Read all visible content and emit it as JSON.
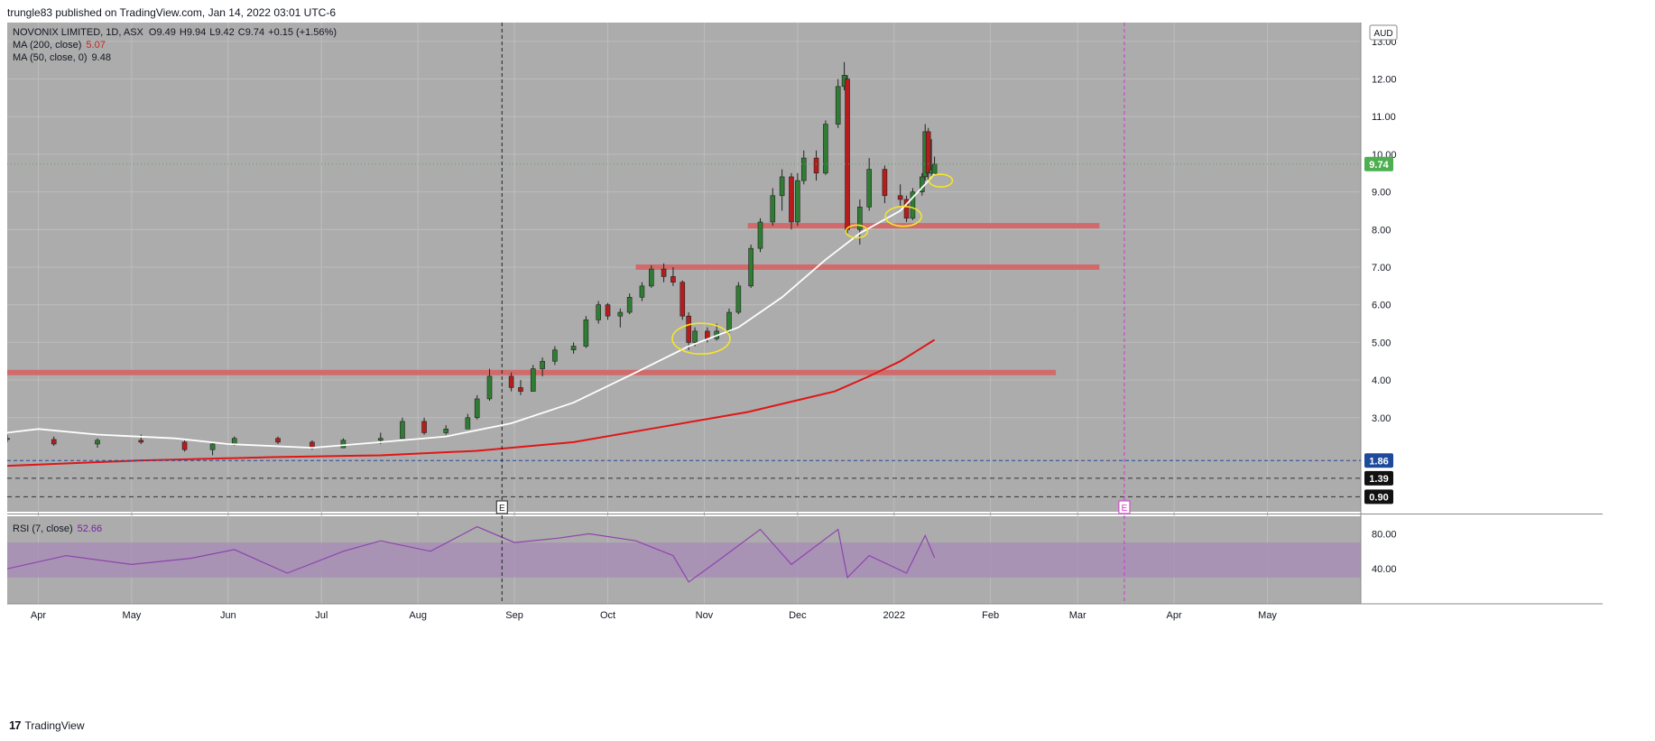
{
  "header": {
    "text": "trungle83 published on TradingView.com, Jan 14, 2022 03:01 UTC-6"
  },
  "legend": {
    "symbol": "NOVONIX LIMITED, 1D, ASX",
    "o_label": "O",
    "o_val": "9.49",
    "h_label": "H",
    "h_val": "9.94",
    "l_label": "L",
    "l_val": "9.42",
    "c_label": "C",
    "c_val": "9.74",
    "change": "+0.15 (+1.56%)",
    "ma200_label": "MA (200, close)",
    "ma200_val": "5.07",
    "ma50_label": "MA (50, close, 0)",
    "ma50_val": "9.48",
    "rsi_label": "RSI (7, close)",
    "rsi_val": "52.66"
  },
  "currency": "AUD",
  "footer": {
    "brand": "TradingView"
  },
  "colors": {
    "pane_bg": "#acacac",
    "up": "#2e7d32",
    "down": "#b71c1c",
    "ma200": "#e01616",
    "ma50": "#ffffff",
    "support": "#d16a6a",
    "rsi": "#8e44ad",
    "rsi_band": "#a78bb8",
    "highlight": "#f5e52a",
    "earnings": "#d633d6",
    "price_tag": "#4caf50"
  },
  "chart_data": {
    "type": "candlestick",
    "title": "NOVONIX LIMITED, 1D, ASX",
    "x_ticks": [
      "Apr",
      "May",
      "Jun",
      "Jul",
      "Aug",
      "Sep",
      "Oct",
      "Nov",
      "Dec",
      "2022",
      "Feb",
      "Mar",
      "Apr",
      "May"
    ],
    "y_ticks": [
      "13.00",
      "12.00",
      "11.00",
      "10.00",
      "9.00",
      "8.00",
      "7.00",
      "6.00",
      "5.00",
      "4.00",
      "3.00"
    ],
    "ylim": [
      0.5,
      13.5
    ],
    "price_labels": [
      {
        "value": 9.74,
        "label": "9.74",
        "kind": "last"
      },
      {
        "value": 1.86,
        "label": "1.86",
        "kind": "blue"
      },
      {
        "value": 1.39,
        "label": "1.39",
        "kind": "black"
      },
      {
        "value": 0.9,
        "label": "0.90",
        "kind": "black"
      }
    ],
    "date_range": [
      "2021-03-22",
      "2022-05-31"
    ],
    "ohlc_points": [
      {
        "date": "2021-03-22",
        "o": 2.45,
        "h": 2.55,
        "l": 2.35,
        "c": 2.42
      },
      {
        "date": "2021-04-06",
        "o": 2.42,
        "h": 2.5,
        "l": 2.25,
        "c": 2.3
      },
      {
        "date": "2021-04-20",
        "o": 2.3,
        "h": 2.45,
        "l": 2.2,
        "c": 2.4
      },
      {
        "date": "2021-05-04",
        "o": 2.4,
        "h": 2.55,
        "l": 2.3,
        "c": 2.35
      },
      {
        "date": "2021-05-18",
        "o": 2.35,
        "h": 2.4,
        "l": 2.1,
        "c": 2.15
      },
      {
        "date": "2021-05-27",
        "o": 2.15,
        "h": 2.35,
        "l": 2.0,
        "c": 2.3
      },
      {
        "date": "2021-06-03",
        "o": 2.3,
        "h": 2.5,
        "l": 2.25,
        "c": 2.45
      },
      {
        "date": "2021-06-17",
        "o": 2.45,
        "h": 2.5,
        "l": 2.3,
        "c": 2.35
      },
      {
        "date": "2021-06-28",
        "o": 2.35,
        "h": 2.4,
        "l": 2.15,
        "c": 2.2
      },
      {
        "date": "2021-07-08",
        "o": 2.2,
        "h": 2.45,
        "l": 2.2,
        "c": 2.4
      },
      {
        "date": "2021-07-20",
        "o": 2.4,
        "h": 2.6,
        "l": 2.3,
        "c": 2.45
      },
      {
        "date": "2021-07-27",
        "o": 2.45,
        "h": 3.0,
        "l": 2.45,
        "c": 2.9
      },
      {
        "date": "2021-08-03",
        "o": 2.9,
        "h": 3.0,
        "l": 2.55,
        "c": 2.6
      },
      {
        "date": "2021-08-10",
        "o": 2.6,
        "h": 2.8,
        "l": 2.55,
        "c": 2.7
      },
      {
        "date": "2021-08-17",
        "o": 2.7,
        "h": 3.1,
        "l": 2.7,
        "c": 3.0
      },
      {
        "date": "2021-08-20",
        "o": 3.0,
        "h": 3.6,
        "l": 2.95,
        "c": 3.5
      },
      {
        "date": "2021-08-24",
        "o": 3.5,
        "h": 4.3,
        "l": 3.45,
        "c": 4.1
      },
      {
        "date": "2021-08-31",
        "o": 4.1,
        "h": 4.2,
        "l": 3.7,
        "c": 3.8
      },
      {
        "date": "2021-09-03",
        "o": 3.8,
        "h": 4.0,
        "l": 3.6,
        "c": 3.7
      },
      {
        "date": "2021-09-07",
        "o": 3.7,
        "h": 4.4,
        "l": 3.7,
        "c": 4.3
      },
      {
        "date": "2021-09-10",
        "o": 4.3,
        "h": 4.6,
        "l": 4.1,
        "c": 4.5
      },
      {
        "date": "2021-09-14",
        "o": 4.5,
        "h": 4.9,
        "l": 4.4,
        "c": 4.8
      },
      {
        "date": "2021-09-20",
        "o": 4.8,
        "h": 5.0,
        "l": 4.7,
        "c": 4.9
      },
      {
        "date": "2021-09-24",
        "o": 4.9,
        "h": 5.7,
        "l": 4.85,
        "c": 5.6
      },
      {
        "date": "2021-09-28",
        "o": 5.6,
        "h": 6.1,
        "l": 5.5,
        "c": 6.0
      },
      {
        "date": "2021-10-01",
        "o": 6.0,
        "h": 6.05,
        "l": 5.6,
        "c": 5.7
      },
      {
        "date": "2021-10-05",
        "o": 5.7,
        "h": 5.9,
        "l": 5.4,
        "c": 5.8
      },
      {
        "date": "2021-10-08",
        "o": 5.8,
        "h": 6.3,
        "l": 5.75,
        "c": 6.2
      },
      {
        "date": "2021-10-12",
        "o": 6.2,
        "h": 6.6,
        "l": 6.1,
        "c": 6.5
      },
      {
        "date": "2021-10-15",
        "o": 6.5,
        "h": 7.05,
        "l": 6.45,
        "c": 6.95
      },
      {
        "date": "2021-10-19",
        "o": 6.95,
        "h": 7.1,
        "l": 6.6,
        "c": 6.75
      },
      {
        "date": "2021-10-22",
        "o": 6.75,
        "h": 7.0,
        "l": 6.5,
        "c": 6.6
      },
      {
        "date": "2021-10-25",
        "o": 6.6,
        "h": 6.65,
        "l": 5.6,
        "c": 5.7
      },
      {
        "date": "2021-10-27",
        "o": 5.7,
        "h": 5.8,
        "l": 4.8,
        "c": 5.0
      },
      {
        "date": "2021-10-29",
        "o": 5.0,
        "h": 5.4,
        "l": 4.9,
        "c": 5.3
      },
      {
        "date": "2021-11-02",
        "o": 5.3,
        "h": 5.4,
        "l": 5.0,
        "c": 5.1
      },
      {
        "date": "2021-11-05",
        "o": 5.1,
        "h": 5.5,
        "l": 5.05,
        "c": 5.3
      },
      {
        "date": "2021-11-09",
        "o": 5.3,
        "h": 5.9,
        "l": 5.25,
        "c": 5.8
      },
      {
        "date": "2021-11-12",
        "o": 5.8,
        "h": 6.6,
        "l": 5.75,
        "c": 6.5
      },
      {
        "date": "2021-11-16",
        "o": 6.5,
        "h": 7.6,
        "l": 6.45,
        "c": 7.5
      },
      {
        "date": "2021-11-19",
        "o": 7.5,
        "h": 8.3,
        "l": 7.4,
        "c": 8.2
      },
      {
        "date": "2021-11-23",
        "o": 8.2,
        "h": 9.1,
        "l": 8.1,
        "c": 8.9
      },
      {
        "date": "2021-11-26",
        "o": 8.9,
        "h": 9.6,
        "l": 8.5,
        "c": 9.4
      },
      {
        "date": "2021-11-29",
        "o": 9.4,
        "h": 9.5,
        "l": 8.0,
        "c": 8.2
      },
      {
        "date": "2021-12-01",
        "o": 8.2,
        "h": 9.5,
        "l": 8.1,
        "c": 9.3
      },
      {
        "date": "2021-12-03",
        "o": 9.3,
        "h": 10.1,
        "l": 9.2,
        "c": 9.9
      },
      {
        "date": "2021-12-07",
        "o": 9.9,
        "h": 10.1,
        "l": 9.3,
        "c": 9.5
      },
      {
        "date": "2021-12-10",
        "o": 9.5,
        "h": 10.9,
        "l": 9.45,
        "c": 10.8
      },
      {
        "date": "2021-12-14",
        "o": 10.8,
        "h": 12.0,
        "l": 10.7,
        "c": 11.8
      },
      {
        "date": "2021-12-16",
        "o": 11.8,
        "h": 12.45,
        "l": 11.7,
        "c": 12.1
      },
      {
        "date": "2021-12-17",
        "o": 12.0,
        "h": 12.1,
        "l": 7.9,
        "c": 8.0
      },
      {
        "date": "2021-12-21",
        "o": 8.0,
        "h": 8.8,
        "l": 7.6,
        "c": 8.6
      },
      {
        "date": "2021-12-24",
        "o": 8.6,
        "h": 9.9,
        "l": 8.5,
        "c": 9.6
      },
      {
        "date": "2021-12-29",
        "o": 9.6,
        "h": 9.7,
        "l": 8.7,
        "c": 8.9
      },
      {
        "date": "2022-01-03",
        "o": 8.9,
        "h": 9.2,
        "l": 8.6,
        "c": 8.8
      },
      {
        "date": "2022-01-05",
        "o": 8.8,
        "h": 8.9,
        "l": 8.2,
        "c": 8.3
      },
      {
        "date": "2022-01-07",
        "o": 8.3,
        "h": 9.1,
        "l": 8.25,
        "c": 9.0
      },
      {
        "date": "2022-01-10",
        "o": 9.0,
        "h": 9.5,
        "l": 8.9,
        "c": 9.4
      },
      {
        "date": "2022-01-11",
        "o": 9.4,
        "h": 10.8,
        "l": 9.3,
        "c": 10.6
      },
      {
        "date": "2022-01-12",
        "o": 10.6,
        "h": 10.7,
        "l": 9.3,
        "c": 9.5
      },
      {
        "date": "2022-01-13",
        "o": 9.5,
        "h": 10.4,
        "l": 9.4,
        "c": 9.59
      },
      {
        "date": "2022-01-14",
        "o": 9.49,
        "h": 9.94,
        "l": 9.42,
        "c": 9.74
      }
    ],
    "ma200": [
      {
        "date": "2021-03-22",
        "v": 1.72
      },
      {
        "date": "2021-05-03",
        "v": 1.86
      },
      {
        "date": "2021-06-15",
        "v": 1.95
      },
      {
        "date": "2021-07-20",
        "v": 2.0
      },
      {
        "date": "2021-08-20",
        "v": 2.12
      },
      {
        "date": "2021-09-20",
        "v": 2.35
      },
      {
        "date": "2021-10-18",
        "v": 2.75
      },
      {
        "date": "2021-11-15",
        "v": 3.15
      },
      {
        "date": "2021-12-13",
        "v": 3.7
      },
      {
        "date": "2021-12-24",
        "v": 4.1
      },
      {
        "date": "2022-01-03",
        "v": 4.5
      },
      {
        "date": "2022-01-14",
        "v": 5.07
      }
    ],
    "ma50": [
      {
        "date": "2021-03-22",
        "v": 2.6
      },
      {
        "date": "2021-04-01",
        "v": 2.7
      },
      {
        "date": "2021-04-20",
        "v": 2.55
      },
      {
        "date": "2021-05-15",
        "v": 2.45
      },
      {
        "date": "2021-06-01",
        "v": 2.3
      },
      {
        "date": "2021-06-28",
        "v": 2.2
      },
      {
        "date": "2021-07-20",
        "v": 2.35
      },
      {
        "date": "2021-08-10",
        "v": 2.5
      },
      {
        "date": "2021-08-31",
        "v": 2.85
      },
      {
        "date": "2021-09-20",
        "v": 3.4
      },
      {
        "date": "2021-10-10",
        "v": 4.2
      },
      {
        "date": "2021-10-27",
        "v": 4.9
      },
      {
        "date": "2021-11-12",
        "v": 5.4
      },
      {
        "date": "2021-11-26",
        "v": 6.2
      },
      {
        "date": "2021-12-10",
        "v": 7.2
      },
      {
        "date": "2021-12-21",
        "v": 7.9
      },
      {
        "date": "2022-01-03",
        "v": 8.5
      },
      {
        "date": "2022-01-11",
        "v": 9.2
      },
      {
        "date": "2022-01-14",
        "v": 9.48
      }
    ],
    "support_lines": [
      {
        "value": 4.2,
        "start": "2021-03-22",
        "end": "2022-02-22"
      },
      {
        "value": 7.0,
        "start": "2021-10-10",
        "end": "2022-03-08"
      },
      {
        "value": 8.1,
        "start": "2021-11-15",
        "end": "2022-03-08"
      }
    ],
    "earnings": [
      {
        "date": "2021-08-28",
        "label": "E"
      },
      {
        "date": "2022-03-16",
        "label": "E"
      }
    ],
    "highlights": [
      {
        "date": "2021-10-31",
        "value": 5.1
      },
      {
        "date": "2021-12-20",
        "value": 7.95
      },
      {
        "date": "2022-01-04",
        "value": 8.35
      },
      {
        "date": "2022-01-16",
        "value": 9.3
      }
    ],
    "rsi": {
      "ylim": [
        0,
        100
      ],
      "y_ticks": [
        "80.00",
        "40.00"
      ],
      "band": [
        30,
        70
      ],
      "values": [
        {
          "date": "2021-03-22",
          "v": 40
        },
        {
          "date": "2021-04-10",
          "v": 55
        },
        {
          "date": "2021-05-01",
          "v": 45
        },
        {
          "date": "2021-05-20",
          "v": 52
        },
        {
          "date": "2021-06-03",
          "v": 62
        },
        {
          "date": "2021-06-20",
          "v": 35
        },
        {
          "date": "2021-07-08",
          "v": 60
        },
        {
          "date": "2021-07-20",
          "v": 72
        },
        {
          "date": "2021-08-05",
          "v": 60
        },
        {
          "date": "2021-08-20",
          "v": 88
        },
        {
          "date": "2021-09-01",
          "v": 70
        },
        {
          "date": "2021-09-15",
          "v": 75
        },
        {
          "date": "2021-09-25",
          "v": 80
        },
        {
          "date": "2021-10-10",
          "v": 72
        },
        {
          "date": "2021-10-22",
          "v": 55
        },
        {
          "date": "2021-10-27",
          "v": 25
        },
        {
          "date": "2021-11-05",
          "v": 48
        },
        {
          "date": "2021-11-19",
          "v": 85
        },
        {
          "date": "2021-11-29",
          "v": 45
        },
        {
          "date": "2021-12-14",
          "v": 85
        },
        {
          "date": "2021-12-17",
          "v": 30
        },
        {
          "date": "2021-12-24",
          "v": 55
        },
        {
          "date": "2022-01-05",
          "v": 35
        },
        {
          "date": "2022-01-11",
          "v": 78
        },
        {
          "date": "2022-01-14",
          "v": 52.66
        }
      ]
    }
  }
}
